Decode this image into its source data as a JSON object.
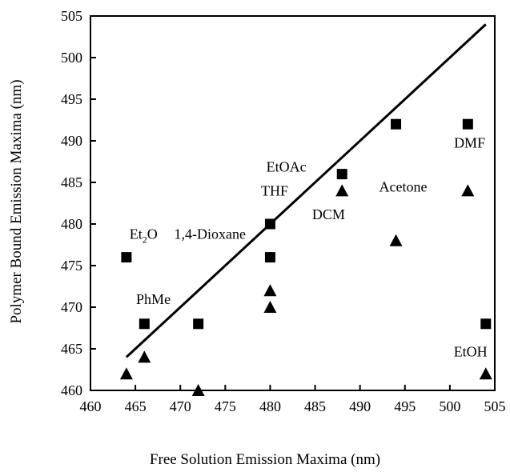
{
  "chart_data": {
    "type": "scatter",
    "title": "",
    "xlabel": "Free Solution Emission Maxima (nm)",
    "ylabel": "Polymer Bound Emission Maxima (nm)",
    "xlim": [
      460,
      505
    ],
    "ylim": [
      460,
      505
    ],
    "xticks": [
      "460",
      "465",
      "470",
      "475",
      "480",
      "485",
      "490",
      "495",
      "500",
      "505"
    ],
    "yticks": [
      "460",
      "465",
      "470",
      "475",
      "480",
      "485",
      "490",
      "495",
      "500",
      "505"
    ],
    "grid": false,
    "series": [
      {
        "marker": "square",
        "points": [
          {
            "x": 464,
            "y": 476
          },
          {
            "x": 466,
            "y": 468
          },
          {
            "x": 472,
            "y": 468
          },
          {
            "x": 480,
            "y": 480
          },
          {
            "x": 480,
            "y": 476
          },
          {
            "x": 488,
            "y": 486
          },
          {
            "x": 494,
            "y": 492
          },
          {
            "x": 502,
            "y": 492
          },
          {
            "x": 504,
            "y": 468
          }
        ]
      },
      {
        "marker": "triangle",
        "points": [
          {
            "x": 464,
            "y": 462
          },
          {
            "x": 466,
            "y": 464
          },
          {
            "x": 472,
            "y": 460
          },
          {
            "x": 480,
            "y": 472
          },
          {
            "x": 480,
            "y": 470
          },
          {
            "x": 488,
            "y": 484
          },
          {
            "x": 494,
            "y": 478
          },
          {
            "x": 502,
            "y": 484
          },
          {
            "x": 504,
            "y": 462
          }
        ]
      }
    ],
    "reference_line": {
      "x": [
        464,
        504
      ],
      "y": [
        464,
        504
      ]
    },
    "annotations": [
      {
        "id": "et2o",
        "base": "Et",
        "sub": "2",
        "tail": "O",
        "x": 465.9,
        "y": 478.2
      },
      {
        "id": "dioxane",
        "text": "1,4-Dioxane",
        "x": 473.3,
        "y": 478.2
      },
      {
        "id": "etoac",
        "text": "EtOAc",
        "x": 481.8,
        "y": 486.3
      },
      {
        "id": "thf",
        "text": "THF",
        "x": 480.5,
        "y": 483.4
      },
      {
        "id": "dcm",
        "text": "DCM",
        "x": 486.5,
        "y": 480.6
      },
      {
        "id": "acetone",
        "text": "Acetone",
        "x": 494.8,
        "y": 483.9
      },
      {
        "id": "phme",
        "text": "PhMe",
        "x": 467.0,
        "y": 470.4
      },
      {
        "id": "dmf",
        "text": "DMF",
        "x": 502.2,
        "y": 489.2
      },
      {
        "id": "etoh",
        "text": "EtOH",
        "x": 502.3,
        "y": 464.1
      }
    ]
  }
}
